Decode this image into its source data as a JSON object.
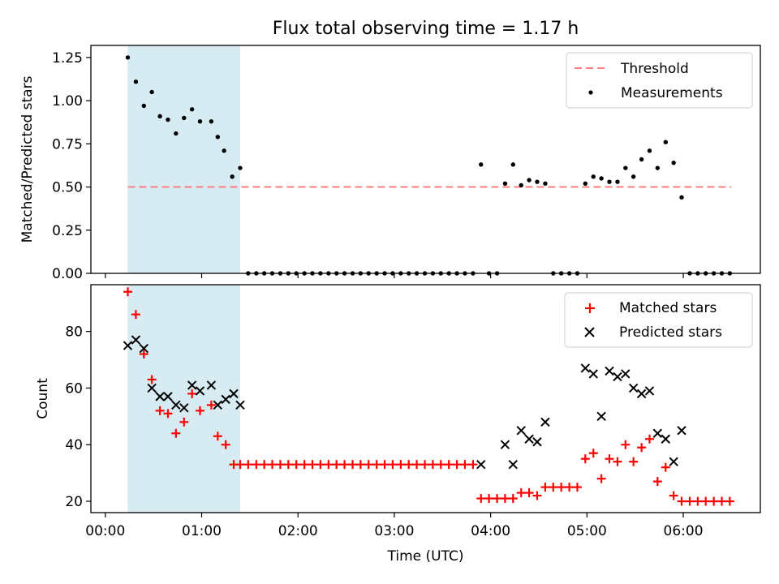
{
  "chart_data": [
    {
      "type": "scatter",
      "title": "Flux total observing time = 1.17 h",
      "xlabel": "",
      "ylabel": "Matched/Predicted stars",
      "x_unit": "hours (UTC)",
      "xlim": [
        -0.15,
        6.8
      ],
      "ylim": [
        0.0,
        1.32
      ],
      "yticks": [
        "0.00",
        "0.25",
        "0.50",
        "0.75",
        "1.00",
        "1.25"
      ],
      "ytick_values": [
        0.0,
        0.25,
        0.5,
        0.75,
        1.0,
        1.25
      ],
      "highlight_span": [
        0.233,
        1.4
      ],
      "highlight_color": "#add8e6",
      "threshold": 0.5,
      "legend": {
        "placement": "upper right",
        "entries": [
          "Threshold",
          "Measurements"
        ]
      },
      "series": [
        {
          "name": "Threshold",
          "style": "dashed-line",
          "color": "#ff7f7f",
          "x": [
            0.233,
            6.5
          ],
          "y": [
            0.5,
            0.5
          ]
        },
        {
          "name": "Measurements",
          "style": "dot",
          "color": "#000000",
          "x": [
            0.233,
            0.317,
            0.4,
            0.483,
            0.567,
            0.65,
            0.733,
            0.817,
            0.9,
            0.983,
            1.1,
            1.167,
            1.233,
            1.317,
            1.4,
            1.483,
            1.567,
            1.65,
            1.733,
            1.817,
            1.9,
            1.983,
            2.067,
            2.15,
            2.233,
            2.317,
            2.4,
            2.483,
            2.567,
            2.65,
            2.733,
            2.817,
            2.9,
            2.983,
            3.067,
            3.15,
            3.233,
            3.317,
            3.4,
            3.483,
            3.567,
            3.65,
            3.733,
            3.817,
            3.9,
            3.983,
            4.067,
            4.15,
            4.233,
            4.317,
            4.4,
            4.483,
            4.567,
            4.65,
            4.733,
            4.817,
            4.9,
            4.983,
            5.067,
            5.15,
            5.233,
            5.317,
            5.4,
            5.483,
            5.567,
            5.65,
            5.733,
            5.817,
            5.9,
            5.983,
            6.067,
            6.15,
            6.233,
            6.317,
            6.4,
            6.483
          ],
          "y": [
            1.25,
            1.11,
            0.97,
            1.05,
            0.91,
            0.89,
            0.81,
            0.9,
            0.95,
            0.88,
            0.88,
            0.79,
            0.71,
            0.56,
            0.61,
            0.0,
            0.0,
            0.0,
            0.0,
            0.0,
            0.0,
            0.0,
            0.0,
            0.0,
            0.0,
            0.0,
            0.0,
            0.0,
            0.0,
            0.0,
            0.0,
            0.0,
            0.0,
            0.0,
            0.0,
            0.0,
            0.0,
            0.0,
            0.0,
            0.0,
            0.0,
            0.0,
            0.0,
            0.0,
            0.63,
            0.0,
            0.0,
            0.52,
            0.63,
            0.51,
            0.54,
            0.53,
            0.52,
            0.0,
            0.0,
            0.0,
            0.0,
            0.52,
            0.56,
            0.55,
            0.53,
            0.53,
            0.61,
            0.56,
            0.66,
            0.71,
            0.61,
            0.76,
            0.64,
            0.44,
            0.0,
            0.0,
            0.0,
            0.0,
            0.0,
            0.0
          ]
        }
      ]
    },
    {
      "type": "scatter",
      "xlabel": "Time (UTC)",
      "ylabel": "Count",
      "x_unit": "hours (UTC)",
      "xlim": [
        -0.15,
        6.8
      ],
      "ylim": [
        16,
        96.5
      ],
      "xticks": [
        "00:00",
        "01:00",
        "02:00",
        "03:00",
        "04:00",
        "05:00",
        "06:00"
      ],
      "xtick_values": [
        0,
        1,
        2,
        3,
        4,
        5,
        6
      ],
      "yticks": [
        "20",
        "40",
        "60",
        "80"
      ],
      "ytick_values": [
        20,
        40,
        60,
        80
      ],
      "highlight_span": [
        0.233,
        1.4
      ],
      "highlight_color": "#add8e6",
      "legend": {
        "placement": "upper right",
        "entries": [
          "Matched stars",
          "Predicted stars"
        ]
      },
      "series": [
        {
          "name": "Matched stars",
          "marker": "+",
          "color": "#ff0000",
          "x": [
            0.233,
            0.317,
            0.4,
            0.483,
            0.567,
            0.65,
            0.733,
            0.817,
            0.9,
            0.983,
            1.1,
            1.167,
            1.25,
            1.333,
            1.4,
            1.483,
            1.567,
            1.65,
            1.733,
            1.817,
            1.9,
            1.983,
            2.067,
            2.15,
            2.233,
            2.317,
            2.4,
            2.483,
            2.567,
            2.65,
            2.733,
            2.817,
            2.9,
            2.983,
            3.067,
            3.15,
            3.233,
            3.317,
            3.4,
            3.483,
            3.567,
            3.65,
            3.733,
            3.817,
            3.9,
            3.983,
            4.067,
            4.15,
            4.233,
            4.317,
            4.4,
            4.483,
            4.567,
            4.65,
            4.733,
            4.817,
            4.9,
            4.983,
            5.067,
            5.15,
            5.233,
            5.317,
            5.4,
            5.483,
            5.567,
            5.65,
            5.733,
            5.817,
            5.9,
            5.983,
            6.067,
            6.15,
            6.233,
            6.317,
            6.4,
            6.483
          ],
          "y": [
            94,
            86,
            72,
            63,
            52,
            51,
            44,
            48,
            58,
            52,
            54,
            43,
            40,
            33,
            33,
            33,
            33,
            33,
            33,
            33,
            33,
            33,
            33,
            33,
            33,
            33,
            33,
            33,
            33,
            33,
            33,
            33,
            33,
            33,
            33,
            33,
            33,
            33,
            33,
            33,
            33,
            33,
            33,
            33,
            21,
            21,
            21,
            21,
            21,
            23,
            23,
            22,
            25,
            25,
            25,
            25,
            25,
            35,
            37,
            28,
            35,
            34,
            40,
            34,
            39,
            42,
            27,
            32,
            22,
            20,
            20,
            20,
            20,
            20,
            20,
            20
          ]
        },
        {
          "name": "Predicted stars",
          "marker": "x",
          "color": "#000000",
          "x": [
            0.233,
            0.317,
            0.4,
            0.483,
            0.567,
            0.65,
            0.733,
            0.817,
            0.9,
            0.983,
            1.1,
            1.167,
            1.25,
            1.333,
            1.4,
            3.9,
            4.15,
            4.233,
            4.317,
            4.4,
            4.483,
            4.567,
            4.983,
            5.067,
            5.15,
            5.233,
            5.317,
            5.4,
            5.483,
            5.567,
            5.65,
            5.733,
            5.817,
            5.9,
            5.983
          ],
          "y": [
            75,
            77,
            74,
            60,
            57,
            57,
            54,
            53,
            61,
            59,
            61,
            54,
            56,
            58,
            54,
            33,
            40,
            33,
            45,
            42,
            41,
            48,
            67,
            65,
            50,
            66,
            64,
            65,
            60,
            58,
            59,
            44,
            42,
            34,
            45
          ]
        }
      ]
    }
  ]
}
